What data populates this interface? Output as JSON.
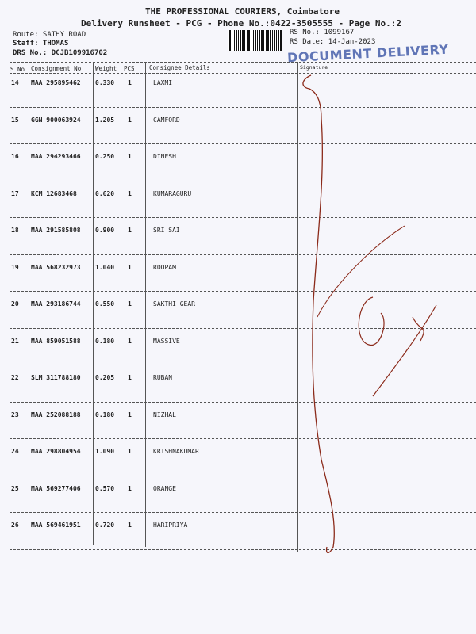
{
  "header": {
    "company": "THE PROFESSIONAL COURIERS, Coimbatore",
    "subtitle": "Delivery Runsheet - PCG - Phone No.:0422-3505555 - Page No.:2",
    "route": "Route: SATHY ROAD",
    "staff": "Staff: THOMAS",
    "drs": "DRS No.: DCJB109916702",
    "rs_no": "RS No.: 1099167",
    "rs_date": "RS Date: 14-Jan-2023",
    "stamp": "DOCUMENT DELIVERY"
  },
  "columns": [
    "S No",
    "Consignment No",
    "Weight",
    "PCS",
    "Consignee Details",
    "Signature"
  ],
  "rows": [
    {
      "sno": "14",
      "cn": "MAA 295895462",
      "weight": "0.330",
      "pcs": "1",
      "name": "LAXMI"
    },
    {
      "sno": "15",
      "cn": "GGN 900063924",
      "weight": "1.205",
      "pcs": "1",
      "name": "CAMFORD"
    },
    {
      "sno": "16",
      "cn": "MAA 294293466",
      "weight": "0.250",
      "pcs": "1",
      "name": "DINESH"
    },
    {
      "sno": "17",
      "cn": "KCM 12683468",
      "weight": "0.620",
      "pcs": "1",
      "name": "KUMARAGURU"
    },
    {
      "sno": "18",
      "cn": "MAA 291585808",
      "weight": "0.900",
      "pcs": "1",
      "name": "SRI SAI"
    },
    {
      "sno": "19",
      "cn": "MAA 568232973",
      "weight": "1.040",
      "pcs": "1",
      "name": "ROOPAM"
    },
    {
      "sno": "20",
      "cn": "MAA 293186744",
      "weight": "0.550",
      "pcs": "1",
      "name": "SAKTHI GEAR"
    },
    {
      "sno": "21",
      "cn": "MAA 859051588",
      "weight": "0.180",
      "pcs": "1",
      "name": "MASSIVE"
    },
    {
      "sno": "22",
      "cn": "SLM 311788180",
      "weight": "0.205",
      "pcs": "1",
      "name": "RUBAN"
    },
    {
      "sno": "23",
      "cn": "MAA 252088188",
      "weight": "0.180",
      "pcs": "1",
      "name": "NIZHAL"
    },
    {
      "sno": "24",
      "cn": "MAA 298804954",
      "weight": "1.090",
      "pcs": "1",
      "name": "KRISHNAKUMAR"
    },
    {
      "sno": "25",
      "cn": "MAA 569277406",
      "weight": "0.570",
      "pcs": "1",
      "name": "ORANGE"
    },
    {
      "sno": "26",
      "cn": "MAA 569461951",
      "weight": "0.720",
      "pcs": "1",
      "name": "HARIPRIYA"
    }
  ],
  "colors": {
    "stamp": "#2f4aa0",
    "signature_ink": "#8b2a1a"
  }
}
